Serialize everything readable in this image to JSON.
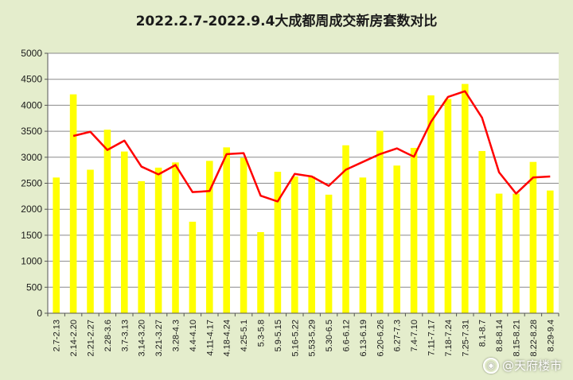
{
  "chart_data": {
    "type": "bar",
    "title": "2022.2.7-2022.9.4大成都周成交新房套数对比",
    "categories": [
      "2.7-2.13",
      "2.14-2.20",
      "2.21-2.27",
      "2.28-3.6",
      "3.7-3.13",
      "3.14-3.20",
      "3.21-3.27",
      "3.28-4.3",
      "4.4-4.10",
      "4.11-4.17",
      "4.18-4.24",
      "4.25-5.1",
      "5.3-5.8",
      "5.9-5.15",
      "5.16-5.22",
      "5.53-5.29",
      "5.30-6.5",
      "6.6-6.12",
      "6.13-6.19",
      "6.20-6.26",
      "6.27-7.3",
      "7.4-7.10",
      "7.11-7.17",
      "7.18-7.24",
      "7.25-7.31",
      "8.1-8.7",
      "8.8-8.14",
      "8.15-8.21",
      "8.22-8.28",
      "8.29-9.4"
    ],
    "series": [
      {
        "type": "bar",
        "values": [
          2610,
          4210,
          2760,
          3530,
          3110,
          2540,
          2800,
          2900,
          1760,
          2930,
          3190,
          2990,
          1560,
          2720,
          2630,
          2630,
          2280,
          3230,
          2610,
          3510,
          2840,
          3180,
          4190,
          4120,
          4410,
          3120,
          2300,
          2300,
          2910,
          2360
        ]
      },
      {
        "type": "line",
        "values": [
          null,
          3410,
          3490,
          3140,
          3320,
          2820,
          2670,
          2850,
          2330,
          2350,
          3060,
          3080,
          2260,
          2150,
          2680,
          2630,
          2450,
          2760,
          2910,
          3060,
          3170,
          3010,
          3680,
          4160,
          4270,
          3760,
          2710,
          2300,
          2610,
          2630
        ]
      }
    ],
    "ylim": [
      0,
      5000
    ],
    "yticks": [
      0,
      500,
      1000,
      1500,
      2000,
      2500,
      3000,
      3500,
      4000,
      4500,
      5000
    ],
    "grid": true,
    "colors": {
      "bar": "#ffff00",
      "line": "#ff0000",
      "background": "#e4edcc",
      "plot_background": "#ffffff"
    }
  },
  "watermark": {
    "icon": "weibo-icon",
    "text": "@天府楼市"
  }
}
